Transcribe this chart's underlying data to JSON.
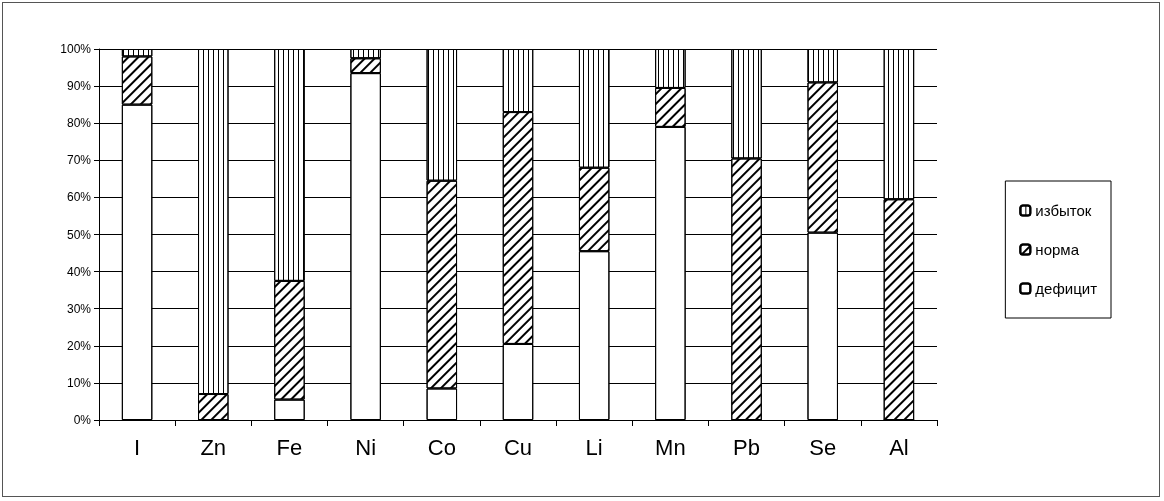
{
  "chart_data": {
    "type": "bar",
    "stacked": true,
    "categories": [
      "I",
      "Zn",
      "Fe",
      "Ni",
      "Co",
      "Cu",
      "Li",
      "Mn",
      "Pb",
      "Se",
      "Al"
    ],
    "series": [
      {
        "name": "дефицит",
        "color": "#ffffff",
        "values": [
          85,
          0,
          5.5,
          93.5,
          8.5,
          20.5,
          45.5,
          79,
          0,
          50.5,
          0
        ]
      },
      {
        "name": "норма",
        "color": "#ffffff",
        "values": [
          13,
          7,
          32,
          4,
          56,
          62.5,
          22.5,
          10.5,
          70.5,
          40.5,
          59.5
        ]
      },
      {
        "name": "избыток",
        "color": "#ffffff",
        "values": [
          2,
          93,
          62.5,
          2.5,
          35.5,
          17,
          32,
          10.5,
          29.5,
          9,
          40.5
        ]
      }
    ],
    "ylim": [
      0,
      100
    ],
    "yticks": [
      {
        "value": 0,
        "label": "0%"
      },
      {
        "value": 10,
        "label": "10%"
      },
      {
        "value": 20,
        "label": "20%"
      },
      {
        "value": 30,
        "label": "30%"
      },
      {
        "value": 40,
        "label": "40%"
      },
      {
        "value": 50,
        "label": "50%"
      },
      {
        "value": 60,
        "label": "60%"
      },
      {
        "value": 70,
        "label": "70%"
      },
      {
        "value": 80,
        "label": "80%"
      },
      {
        "value": 90,
        "label": "90%"
      },
      {
        "value": 100,
        "label": "100%"
      }
    ],
    "grid": "y",
    "legend": "right"
  }
}
